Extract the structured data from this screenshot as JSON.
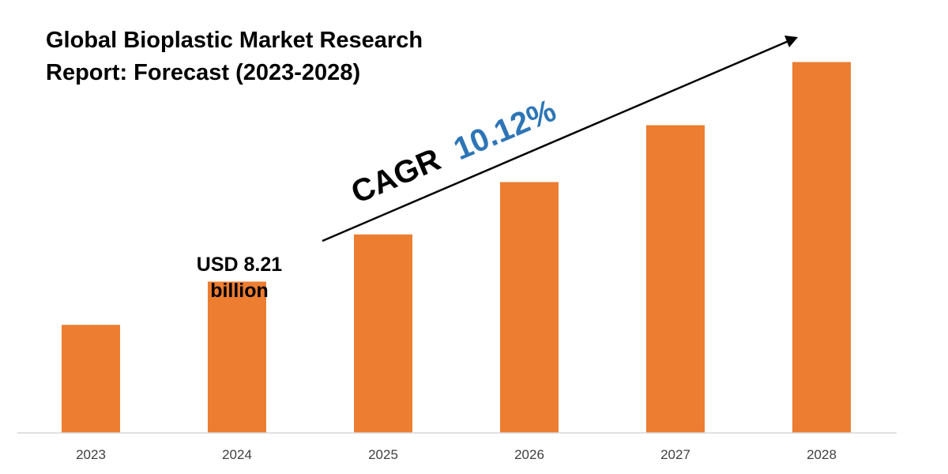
{
  "chart_data": {
    "type": "bar",
    "title_lines": [
      "Global Bioplastic Market Research",
      "Report: Forecast (2023-2028)"
    ],
    "categories": [
      "2023",
      "2024",
      "2025",
      "2026",
      "2027",
      "2028"
    ],
    "values": [
      7.45,
      8.21,
      9.04,
      9.96,
      10.96,
      12.07
    ],
    "value_annotation": {
      "category": "2024",
      "lines": [
        "USD 8.21",
        "billion"
      ]
    },
    "cagr": {
      "label": "CAGR",
      "value": "10.12%"
    },
    "trend_arrow": true,
    "grid": false,
    "colors": {
      "bar": "#ED7D31",
      "cagr_value": "#2E75B6",
      "cagr_label": "#000000",
      "axis": "#D9D9D9",
      "tick": "#404040"
    }
  }
}
